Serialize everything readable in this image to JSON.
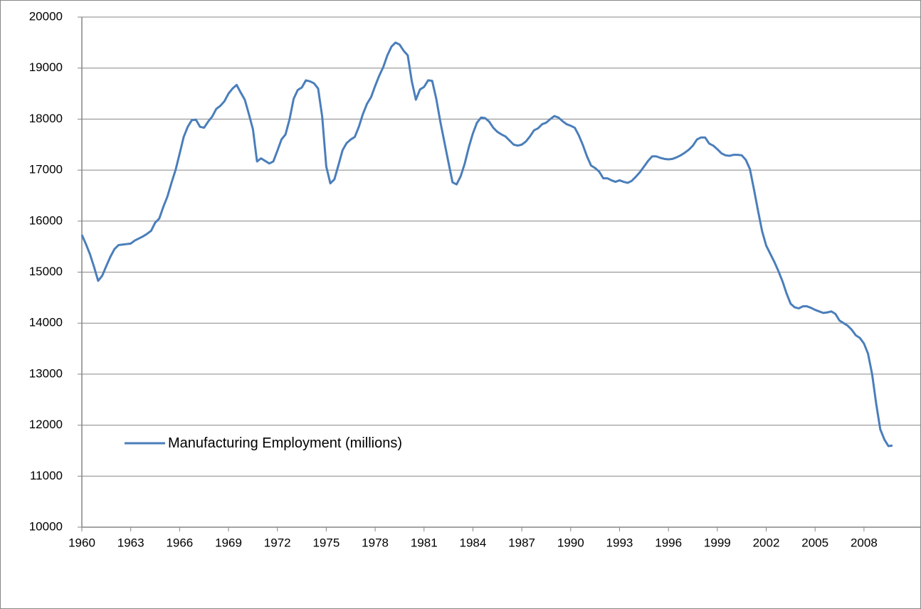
{
  "chart_data": {
    "type": "line",
    "x": [
      1960,
      1960.25,
      1960.5,
      1960.75,
      1961,
      1961.25,
      1961.5,
      1961.75,
      1962,
      1962.25,
      1962.5,
      1962.75,
      1963,
      1963.25,
      1963.5,
      1963.75,
      1964,
      1964.25,
      1964.5,
      1964.75,
      1965,
      1965.25,
      1965.5,
      1965.75,
      1966,
      1966.25,
      1966.5,
      1966.75,
      1967,
      1967.25,
      1967.5,
      1967.75,
      1968,
      1968.25,
      1968.5,
      1968.75,
      1969,
      1969.25,
      1969.5,
      1969.75,
      1970,
      1970.25,
      1970.5,
      1970.75,
      1971,
      1971.25,
      1971.5,
      1971.75,
      1972,
      1972.25,
      1972.5,
      1972.75,
      1973,
      1973.25,
      1973.5,
      1973.75,
      1974,
      1974.25,
      1974.5,
      1974.75,
      1975,
      1975.25,
      1975.5,
      1975.75,
      1976,
      1976.25,
      1976.5,
      1976.75,
      1977,
      1977.25,
      1977.5,
      1977.75,
      1978,
      1978.25,
      1978.5,
      1978.75,
      1979,
      1979.25,
      1979.5,
      1979.75,
      1980,
      1980.25,
      1980.5,
      1980.75,
      1981,
      1981.25,
      1981.5,
      1981.75,
      1982,
      1982.25,
      1982.5,
      1982.75,
      1983,
      1983.25,
      1983.5,
      1983.75,
      1984,
      1984.25,
      1984.5,
      1984.75,
      1985,
      1985.25,
      1985.5,
      1985.75,
      1986,
      1986.25,
      1986.5,
      1986.75,
      1987,
      1987.25,
      1987.5,
      1987.75,
      1988,
      1988.25,
      1988.5,
      1988.75,
      1989,
      1989.25,
      1989.5,
      1989.75,
      1990,
      1990.25,
      1990.5,
      1990.75,
      1991,
      1991.25,
      1991.5,
      1991.75,
      1992,
      1992.25,
      1992.5,
      1992.75,
      1993,
      1993.25,
      1993.5,
      1993.75,
      1994,
      1994.25,
      1994.5,
      1994.75,
      1995,
      1995.25,
      1995.5,
      1995.75,
      1996,
      1996.25,
      1996.5,
      1996.75,
      1997,
      1997.25,
      1997.5,
      1997.75,
      1998,
      1998.25,
      1998.5,
      1998.75,
      1999,
      1999.25,
      1999.5,
      1999.75,
      2000,
      2000.25,
      2000.5,
      2000.75,
      2001,
      2001.25,
      2001.5,
      2001.75,
      2002,
      2002.25,
      2002.5,
      2002.75,
      2003,
      2003.25,
      2003.5,
      2003.75,
      2004,
      2004.25,
      2004.5,
      2004.75,
      2005,
      2005.25,
      2005.5,
      2005.75,
      2006,
      2006.25,
      2006.5,
      2006.75,
      2007,
      2007.25,
      2007.5,
      2007.75,
      2008,
      2008.25,
      2008.5,
      2008.75,
      2009,
      2009.25,
      2009.5,
      2009.75
    ],
    "series": [
      {
        "name": "Manufacturing Employment (millions)",
        "color": "#4a7ebb",
        "values": [
          15730,
          15550,
          15350,
          15100,
          14830,
          14930,
          15120,
          15300,
          15450,
          15530,
          15540,
          15550,
          15560,
          15620,
          15660,
          15700,
          15750,
          15810,
          15970,
          16050,
          16280,
          16480,
          16750,
          17000,
          17320,
          17650,
          17850,
          17980,
          17990,
          17850,
          17830,
          17950,
          18050,
          18200,
          18260,
          18350,
          18500,
          18600,
          18670,
          18520,
          18380,
          18100,
          17800,
          17170,
          17230,
          17180,
          17130,
          17170,
          17380,
          17600,
          17700,
          18000,
          18400,
          18570,
          18620,
          18760,
          18740,
          18700,
          18600,
          18050,
          17070,
          16740,
          16820,
          17100,
          17390,
          17530,
          17600,
          17650,
          17850,
          18100,
          18300,
          18430,
          18650,
          18850,
          19020,
          19250,
          19420,
          19500,
          19460,
          19340,
          19250,
          18740,
          18380,
          18580,
          18630,
          18760,
          18750,
          18400,
          17950,
          17550,
          17150,
          16760,
          16720,
          16880,
          17130,
          17450,
          17720,
          17930,
          18030,
          18020,
          17950,
          17830,
          17750,
          17700,
          17660,
          17580,
          17500,
          17480,
          17500,
          17560,
          17660,
          17780,
          17820,
          17900,
          17930,
          18000,
          18060,
          18030,
          17960,
          17900,
          17870,
          17830,
          17680,
          17490,
          17270,
          17090,
          17040,
          16970,
          16840,
          16840,
          16800,
          16770,
          16800,
          16770,
          16750,
          16790,
          16870,
          16960,
          17070,
          17180,
          17270,
          17270,
          17240,
          17220,
          17210,
          17220,
          17250,
          17290,
          17340,
          17400,
          17480,
          17600,
          17640,
          17640,
          17520,
          17480,
          17410,
          17330,
          17290,
          17280,
          17300,
          17300,
          17290,
          17200,
          17020,
          16620,
          16200,
          15800,
          15520,
          15360,
          15200,
          15020,
          14820,
          14580,
          14380,
          14310,
          14290,
          14330,
          14330,
          14300,
          14260,
          14230,
          14200,
          14210,
          14230,
          14180,
          14050,
          14000,
          13950,
          13870,
          13760,
          13710,
          13600,
          13400,
          13000,
          12420,
          11920,
          11720,
          11590,
          11600
        ]
      }
    ],
    "xlim": [
      1960,
      2011.5
    ],
    "xticks": [
      1960,
      1963,
      1966,
      1969,
      1972,
      1975,
      1978,
      1981,
      1984,
      1987,
      1990,
      1993,
      1996,
      1999,
      2002,
      2005,
      2008
    ],
    "ylim": [
      10000,
      20000
    ],
    "yticks": [
      10000,
      11000,
      12000,
      13000,
      14000,
      15000,
      16000,
      17000,
      18000,
      19000,
      20000
    ],
    "grid": true
  }
}
